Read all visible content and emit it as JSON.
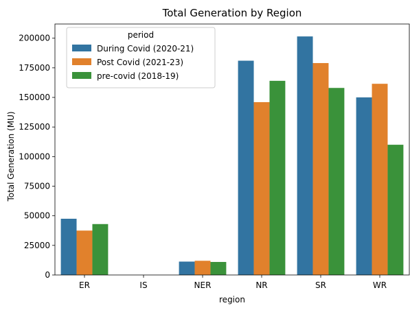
{
  "chart_data": {
    "type": "bar",
    "title": "Total Generation by Region",
    "xlabel": "region",
    "ylabel": "Total Generation (MU)",
    "categories": [
      "ER",
      "IS",
      "NER",
      "NR",
      "SR",
      "WR"
    ],
    "series": [
      {
        "name": "During Covid (2020-21)",
        "color": "#3274a1",
        "values": [
          47500,
          0,
          11300,
          181000,
          201500,
          150000
        ]
      },
      {
        "name": "Post Covid (2021-23)",
        "color": "#e1812c",
        "values": [
          37500,
          0,
          12000,
          146000,
          179000,
          161500
        ]
      },
      {
        "name": "pre-covid (2018-19)",
        "color": "#3a923a",
        "values": [
          43000,
          0,
          11000,
          164000,
          158000,
          110000
        ]
      }
    ],
    "ylim": [
      0,
      212000
    ],
    "yticks": [
      0,
      25000,
      50000,
      75000,
      100000,
      125000,
      150000,
      175000,
      200000
    ],
    "ytick_labels": [
      "0",
      "25000",
      "50000",
      "75000",
      "100000",
      "125000",
      "150000",
      "175000",
      "200000"
    ],
    "legend": {
      "title": "period",
      "position": "top-left"
    },
    "grid": false
  }
}
